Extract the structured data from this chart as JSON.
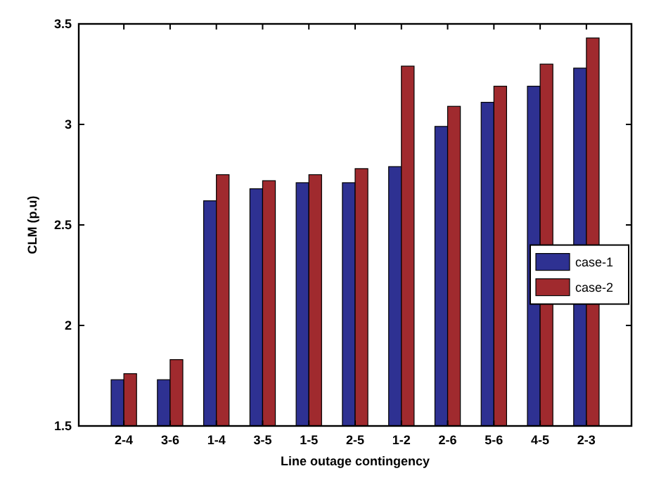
{
  "chart_data": {
    "type": "bar",
    "xlabel": "Line outage contingency",
    "ylabel": "CLM (p.u)",
    "categories": [
      "2-4",
      "3-6",
      "1-4",
      "3-5",
      "1-5",
      "2-5",
      "1-2",
      "2-6",
      "5-6",
      "4-5",
      "2-3"
    ],
    "series": [
      {
        "name": "case-1",
        "color": "#2e3192",
        "values": [
          1.73,
          1.73,
          2.62,
          2.68,
          2.71,
          2.71,
          2.79,
          2.99,
          3.11,
          3.19,
          3.28
        ]
      },
      {
        "name": "case-2",
        "color": "#a02a2e",
        "values": [
          1.76,
          1.83,
          2.75,
          2.72,
          2.75,
          2.78,
          3.29,
          3.09,
          3.19,
          3.3,
          3.43
        ]
      }
    ],
    "ylim": [
      1.5,
      3.5
    ],
    "yticks": [
      1.5,
      2,
      2.5,
      3,
      3.5
    ],
    "grid": false,
    "legend": "right"
  }
}
